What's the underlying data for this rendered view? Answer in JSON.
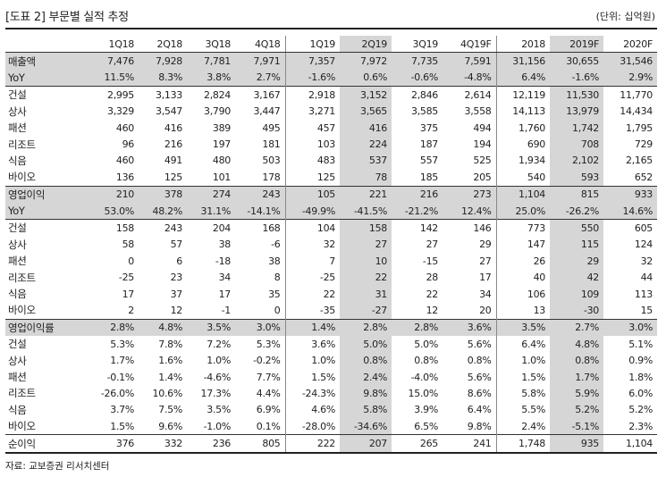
{
  "title": "[도표 2] 부문별 실적 추정",
  "unit": "(단위: 십억원)",
  "source": "자료: 교보증권 리서치센터",
  "columns": [
    "1Q18",
    "2Q18",
    "3Q18",
    "4Q18",
    "1Q19",
    "2Q19",
    "3Q19",
    "4Q19F",
    "2018",
    "2019F",
    "2020F"
  ],
  "rows": [
    {
      "label": "매출액",
      "values": [
        "7,476",
        "7,928",
        "7,781",
        "7,971",
        "7,357",
        "7,972",
        "7,735",
        "7,591",
        "31,156",
        "30,655",
        "31,546"
      ],
      "shade": true,
      "groupTop": true
    },
    {
      "label": "YoY",
      "values": [
        "11.5%",
        "8.3%",
        "3.8%",
        "2.7%",
        "-1.6%",
        "0.6%",
        "-0.6%",
        "-4.8%",
        "6.4%",
        "-1.6%",
        "2.9%"
      ],
      "shade": true
    },
    {
      "label": "건설",
      "values": [
        "2,995",
        "3,133",
        "2,824",
        "3,167",
        "2,918",
        "3,152",
        "2,846",
        "2,614",
        "12,119",
        "11,530",
        "11,770"
      ],
      "groupTop": true
    },
    {
      "label": "상사",
      "values": [
        "3,329",
        "3,547",
        "3,790",
        "3,447",
        "3,271",
        "3,565",
        "3,585",
        "3,558",
        "14,113",
        "13,979",
        "14,434"
      ]
    },
    {
      "label": "패션",
      "values": [
        "460",
        "416",
        "389",
        "495",
        "457",
        "416",
        "375",
        "494",
        "1,760",
        "1,742",
        "1,795"
      ]
    },
    {
      "label": "리조트",
      "values": [
        "96",
        "216",
        "197",
        "181",
        "103",
        "224",
        "187",
        "194",
        "690",
        "708",
        "729"
      ]
    },
    {
      "label": "식음",
      "values": [
        "460",
        "491",
        "480",
        "503",
        "483",
        "537",
        "557",
        "525",
        "1,934",
        "2,102",
        "2,165"
      ]
    },
    {
      "label": "바이오",
      "values": [
        "136",
        "125",
        "101",
        "178",
        "125",
        "78",
        "185",
        "205",
        "540",
        "593",
        "652"
      ]
    },
    {
      "label": "영업이익",
      "values": [
        "210",
        "378",
        "274",
        "243",
        "105",
        "221",
        "216",
        "273",
        "1,104",
        "815",
        "933"
      ],
      "shade": true,
      "groupTop": true
    },
    {
      "label": "YoY",
      "values": [
        "53.0%",
        "48.2%",
        "31.1%",
        "-14.1%",
        "-49.9%",
        "-41.5%",
        "-21.2%",
        "12.4%",
        "25.0%",
        "-26.2%",
        "14.6%"
      ],
      "shade": true
    },
    {
      "label": "건설",
      "values": [
        "158",
        "243",
        "204",
        "168",
        "104",
        "158",
        "142",
        "146",
        "773",
        "550",
        "605"
      ],
      "groupTop": true
    },
    {
      "label": "상사",
      "values": [
        "58",
        "57",
        "38",
        "-6",
        "32",
        "27",
        "27",
        "29",
        "147",
        "115",
        "124"
      ]
    },
    {
      "label": "패션",
      "values": [
        "0",
        "6",
        "-18",
        "38",
        "7",
        "10",
        "-15",
        "27",
        "26",
        "29",
        "32"
      ]
    },
    {
      "label": "리조트",
      "values": [
        "-25",
        "23",
        "34",
        "8",
        "-25",
        "22",
        "28",
        "17",
        "40",
        "42",
        "44"
      ]
    },
    {
      "label": "식음",
      "values": [
        "17",
        "37",
        "17",
        "35",
        "22",
        "31",
        "22",
        "34",
        "106",
        "109",
        "113"
      ]
    },
    {
      "label": "바이오",
      "values": [
        "2",
        "12",
        "-1",
        "0",
        "-35",
        "-27",
        "12",
        "20",
        "13",
        "-30",
        "15"
      ]
    },
    {
      "label": "영업이익률",
      "values": [
        "2.8%",
        "4.8%",
        "3.5%",
        "3.0%",
        "1.4%",
        "2.8%",
        "2.8%",
        "3.6%",
        "3.5%",
        "2.7%",
        "3.0%"
      ],
      "shade": true,
      "groupTop": true
    },
    {
      "label": "건설",
      "values": [
        "5.3%",
        "7.8%",
        "7.2%",
        "5.3%",
        "3.6%",
        "5.0%",
        "5.0%",
        "5.6%",
        "6.4%",
        "4.8%",
        "5.1%"
      ]
    },
    {
      "label": "상사",
      "values": [
        "1.7%",
        "1.6%",
        "1.0%",
        "-0.2%",
        "1.0%",
        "0.8%",
        "0.8%",
        "0.8%",
        "1.0%",
        "0.8%",
        "0.9%"
      ]
    },
    {
      "label": "패션",
      "values": [
        "-0.1%",
        "1.4%",
        "-4.6%",
        "7.7%",
        "1.5%",
        "2.4%",
        "-4.0%",
        "5.6%",
        "1.5%",
        "1.7%",
        "1.8%"
      ]
    },
    {
      "label": "리조트",
      "values": [
        "-26.0%",
        "10.6%",
        "17.3%",
        "4.4%",
        "-24.3%",
        "9.8%",
        "15.0%",
        "8.6%",
        "5.8%",
        "5.9%",
        "6.0%"
      ]
    },
    {
      "label": "식음",
      "values": [
        "3.7%",
        "7.5%",
        "3.5%",
        "6.9%",
        "4.6%",
        "5.8%",
        "3.9%",
        "6.4%",
        "5.5%",
        "5.2%",
        "5.2%"
      ]
    },
    {
      "label": "바이오",
      "values": [
        "1.5%",
        "9.6%",
        "-1.0%",
        "0.1%",
        "-28.0%",
        "-34.6%",
        "6.5%",
        "9.8%",
        "2.4%",
        "-5.1%",
        "2.3%"
      ]
    },
    {
      "label": "순이익",
      "values": [
        "376",
        "332",
        "236",
        "805",
        "222",
        "207",
        "265",
        "241",
        "1,748",
        "935",
        "1,104"
      ],
      "groupTop": true,
      "last": true
    }
  ]
}
